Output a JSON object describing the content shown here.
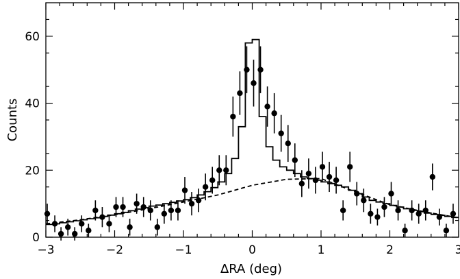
{
  "chart_data": {
    "type": "scatter",
    "title": "",
    "xlabel": "ΔRA (deg)",
    "ylabel": "Counts",
    "xlim": [
      -3,
      3
    ],
    "ylim": [
      0,
      70
    ],
    "x_ticks": [
      -3,
      -2,
      -1,
      0,
      1,
      2,
      3
    ],
    "x_tick_labels": [
      "−3",
      "−2",
      "−1",
      "0",
      "1",
      "2",
      "3"
    ],
    "y_ticks": [
      0,
      20,
      40,
      60
    ],
    "y_tick_labels": [
      "0",
      "20",
      "40",
      "60"
    ],
    "grid": false,
    "legend": "none",
    "series": [
      {
        "type": "errorbar-scatter",
        "marker": "filled-circle",
        "x": [
          -2.98,
          -2.87,
          -2.78,
          -2.68,
          -2.58,
          -2.48,
          -2.38,
          -2.28,
          -2.18,
          -2.08,
          -1.98,
          -1.88,
          -1.78,
          -1.68,
          -1.58,
          -1.48,
          -1.38,
          -1.28,
          -1.18,
          -1.08,
          -0.98,
          -0.88,
          -0.78,
          -0.68,
          -0.58,
          -0.48,
          -0.38,
          -0.28,
          -0.18,
          -0.08,
          0.02,
          0.12,
          0.22,
          0.32,
          0.42,
          0.52,
          0.62,
          0.72,
          0.82,
          0.92,
          1.02,
          1.12,
          1.22,
          1.32,
          1.42,
          1.52,
          1.62,
          1.72,
          1.82,
          1.92,
          2.02,
          2.12,
          2.22,
          2.32,
          2.42,
          2.52,
          2.62,
          2.72,
          2.82,
          2.92
        ],
        "y": [
          7,
          4,
          1,
          3,
          1,
          4,
          2,
          8,
          6,
          4,
          9,
          9,
          3,
          10,
          9,
          8,
          3,
          7,
          8,
          8,
          14,
          10,
          11,
          15,
          17,
          20,
          20,
          36,
          43,
          50,
          46,
          50,
          39,
          37,
          31,
          28,
          23,
          16,
          19,
          17,
          21,
          18,
          17,
          8,
          21,
          13,
          11,
          7,
          6,
          9,
          13,
          8,
          2,
          8,
          7,
          8,
          18,
          6,
          2,
          7
        ],
        "yerr": [
          3,
          2.5,
          2,
          2.5,
          2,
          2.5,
          2,
          3,
          3,
          2.5,
          3,
          3,
          2.5,
          3,
          3,
          3,
          2.5,
          3,
          3,
          3,
          4,
          3.5,
          3.5,
          4,
          4,
          4.5,
          4.5,
          6,
          6.5,
          7,
          7,
          7,
          6,
          6,
          5.5,
          5.5,
          5,
          4,
          4.5,
          4,
          4.5,
          4.5,
          4,
          3,
          4.5,
          3.5,
          3.5,
          3,
          2.5,
          3,
          3.5,
          3,
          2,
          3,
          3,
          3,
          4,
          2.5,
          2,
          3
        ]
      },
      {
        "type": "step",
        "line": "solid",
        "edges": [
          -3,
          -2.9,
          -2.8,
          -2.7,
          -2.6,
          -2.5,
          -2.4,
          -2.3,
          -2.2,
          -2.1,
          -2,
          -1.9,
          -1.8,
          -1.7,
          -1.6,
          -1.5,
          -1.4,
          -1.3,
          -1.2,
          -1.1,
          -1,
          -0.9,
          -0.8,
          -0.7,
          -0.6,
          -0.5,
          -0.4,
          -0.3,
          -0.2,
          -0.1,
          0,
          0.1,
          0.2,
          0.3,
          0.4,
          0.5,
          0.6,
          0.7,
          0.8,
          0.9,
          1,
          1.1,
          1.2,
          1.3,
          1.4,
          1.5,
          1.6,
          1.7,
          1.8,
          1.9,
          2,
          2.1,
          2.2,
          2.3,
          2.4,
          2.5,
          2.6,
          2.7,
          2.8,
          2.9,
          3
        ],
        "values": [
          3.8,
          4.0,
          4.3,
          4.6,
          4.9,
          5.2,
          5.5,
          5.8,
          6.2,
          6.6,
          7.0,
          7.4,
          7.9,
          8.4,
          8.8,
          9.3,
          9.6,
          10.0,
          10.4,
          10.8,
          11.2,
          11.8,
          12.6,
          13.6,
          14.8,
          16.5,
          19.0,
          23.5,
          33.0,
          58.0,
          59.0,
          36.0,
          27.0,
          23.0,
          21.0,
          20.0,
          19.0,
          18.0,
          17.5,
          17.0,
          16.5,
          16.0,
          15.5,
          15.0,
          14.0,
          13.0,
          12.0,
          11.0,
          10.5,
          10.0,
          9.5,
          9.0,
          8.5,
          8.0,
          7.6,
          7.2,
          6.8,
          6.5,
          6.2,
          5.9
        ]
      },
      {
        "type": "line",
        "line": "dashed",
        "x": [
          -3,
          -2.5,
          -2,
          -1.5,
          -1,
          -0.5,
          0,
          0.5,
          1,
          1.5,
          2,
          2.5,
          3
        ],
        "y": [
          4.0,
          5.2,
          6.7,
          8.5,
          10.5,
          12.6,
          15.5,
          17.3,
          17.5,
          13.5,
          9.7,
          7.6,
          5.8
        ]
      }
    ]
  }
}
